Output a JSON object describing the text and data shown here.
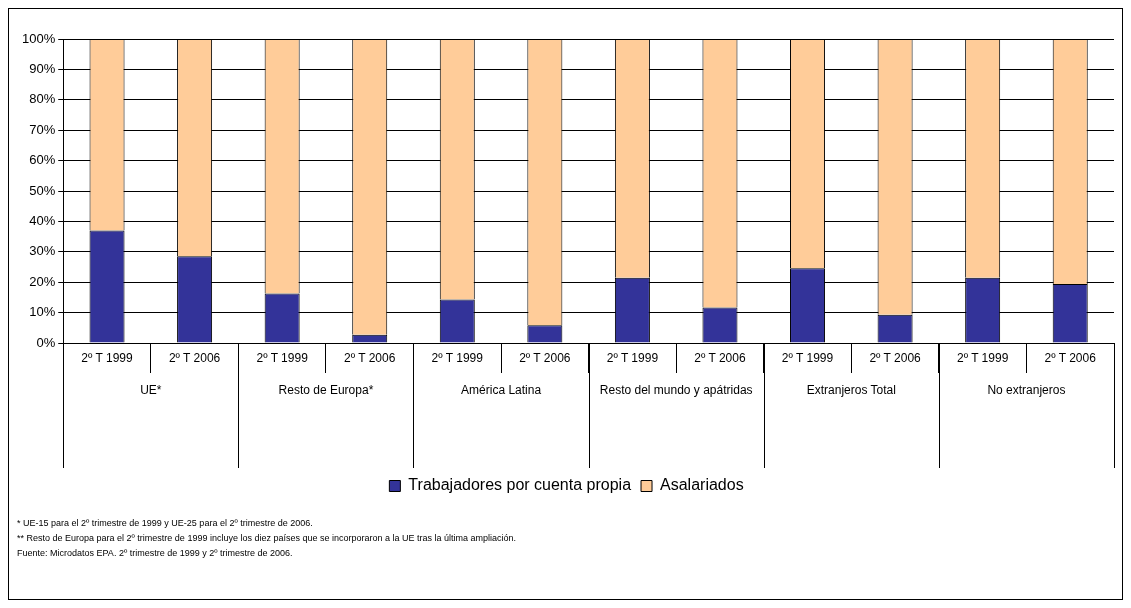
{
  "chart_data": {
    "type": "bar",
    "stacked": true,
    "categories": [
      "2º T 1999",
      "2º T 2006",
      "2º T 1999",
      "2º T 2006",
      "2º T 1999",
      "2º T 2006",
      "2º T 1999",
      "2º T 2006",
      "2º T 1999",
      "2º T 2006",
      "2º T 1999",
      "2º T 2006"
    ],
    "series": [
      {
        "name": "Trabajadores por cuenta propia",
        "color": "#333399",
        "values": [
          37,
          28.5,
          16.3,
          2.7,
          14.3,
          5.8,
          21.5,
          11.7,
          24.6,
          9.3,
          21.5,
          19.4
        ]
      },
      {
        "name": "Asalariados",
        "color": "#ffcc99",
        "values": [
          63,
          71.5,
          83.7,
          97.3,
          85.7,
          94.2,
          78.5,
          88.3,
          75.4,
          90.7,
          78.5,
          80.6
        ]
      }
    ],
    "ylim": [
      0,
      100
    ],
    "yticks": [
      {
        "value": 0,
        "label": "0%"
      },
      {
        "value": 10,
        "label": "10%"
      },
      {
        "value": 20,
        "label": "20%"
      },
      {
        "value": 30,
        "label": "30%"
      },
      {
        "value": 40,
        "label": "40%"
      },
      {
        "value": 50,
        "label": "50%"
      },
      {
        "value": 60,
        "label": "60%"
      },
      {
        "value": 70,
        "label": "70%"
      },
      {
        "value": 80,
        "label": "80%"
      },
      {
        "value": 90,
        "label": "90%"
      },
      {
        "value": 100,
        "label": "100%"
      }
    ],
    "grid": "y",
    "legend": "bottom",
    "annotations": [
      "UE*",
      "Resto de Europa*",
      "América Latina",
      "Resto del mundo y apátridas",
      "Extranjeros Total",
      "No extranjeros",
      "* UE-15 para el 2º trimestre de 1999 y UE-25 para el 2º trimestre de 2006.",
      "** Resto de Europa para el 2º trimestre de 1999 incluye los diez países que se incorporaron a la UE tras la última ampliación.",
      "Fuente: Microdatos EPA. 2º trimestre de 1999 y 2º trimestre de 2006."
    ]
  }
}
